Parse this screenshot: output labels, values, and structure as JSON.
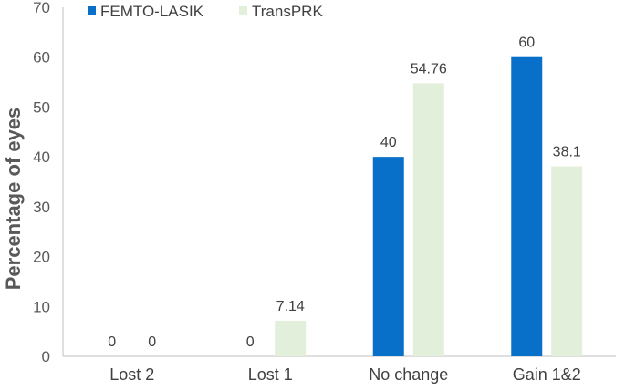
{
  "chart_data": {
    "type": "bar",
    "categories": [
      "Lost 2",
      "Lost 1",
      "No change",
      "Gain 1&2"
    ],
    "series": [
      {
        "name": "FEMTO-LASIK",
        "values": [
          0,
          0,
          40,
          60
        ],
        "color": "#0870c8"
      },
      {
        "name": "TransPRK",
        "values": [
          0,
          7.14,
          54.76,
          38.1
        ],
        "color": "#e2efda"
      }
    ],
    "value_labels": [
      [
        "0",
        "0",
        "40",
        "60"
      ],
      [
        "0",
        "7.14",
        "54.76",
        "38.1"
      ]
    ],
    "title": "",
    "xlabel": "",
    "ylabel": "Percentage of eyes",
    "ylim": [
      0,
      70
    ],
    "yticks": [
      0,
      10,
      20,
      30,
      40,
      50,
      60,
      70
    ],
    "grid": false,
    "legend_position": "top-left"
  }
}
